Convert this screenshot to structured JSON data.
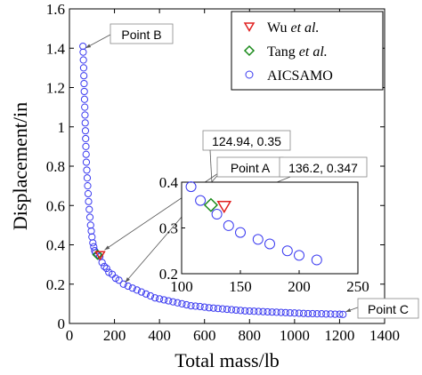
{
  "chart_data": {
    "type": "scatter",
    "xlabel": "Total mass/lb",
    "ylabel": "Displacement/in",
    "xlim": [
      0,
      1400
    ],
    "ylim": [
      0,
      1.6
    ],
    "xticks": [
      "0",
      "200",
      "400",
      "600",
      "800",
      "1000",
      "1200",
      "1400"
    ],
    "yticks": [
      "0",
      "0.2",
      "0.4",
      "0.6",
      "0.8",
      "1",
      "1.2",
      "1.4",
      "1.6"
    ],
    "legend_position": "top-right",
    "legend": [
      {
        "prefix": "Wu ",
        "italic": "et al.",
        "marker": "triangle-down",
        "color": "#e02020"
      },
      {
        "prefix": "Tang ",
        "italic": "et al.",
        "marker": "diamond",
        "color": "#1a8a1a"
      },
      {
        "prefix": "AICSAMO",
        "italic": "",
        "marker": "circle",
        "color": "#3a3af0"
      }
    ],
    "series": [
      {
        "name": "AICSAMO",
        "marker": "circle",
        "color": "#3a3af0",
        "points": [
          [
            60,
            1.41
          ],
          [
            61,
            1.38
          ],
          [
            62,
            1.34
          ],
          [
            63,
            1.3
          ],
          [
            64,
            1.26
          ],
          [
            65,
            1.22
          ],
          [
            66,
            1.18
          ],
          [
            67,
            1.14
          ],
          [
            68,
            1.1
          ],
          [
            69,
            1.06
          ],
          [
            70,
            1.02
          ],
          [
            71,
            0.98
          ],
          [
            72,
            0.94
          ],
          [
            73,
            0.9
          ],
          [
            74,
            0.86
          ],
          [
            75,
            0.82
          ],
          [
            77,
            0.78
          ],
          [
            79,
            0.74
          ],
          [
            81,
            0.7
          ],
          [
            83,
            0.66
          ],
          [
            85,
            0.62
          ],
          [
            88,
            0.58
          ],
          [
            91,
            0.54
          ],
          [
            94,
            0.5
          ],
          [
            97,
            0.47
          ],
          [
            100,
            0.44
          ],
          [
            104,
            0.41
          ],
          [
            108,
            0.39
          ],
          [
            112,
            0.37
          ],
          [
            116,
            0.36
          ],
          [
            125,
            0.35
          ],
          [
            135,
            0.34
          ],
          [
            145,
            0.31
          ],
          [
            155,
            0.29
          ],
          [
            165,
            0.28
          ],
          [
            175,
            0.26
          ],
          [
            190,
            0.25
          ],
          [
            205,
            0.23
          ],
          [
            220,
            0.22
          ],
          [
            240,
            0.2
          ],
          [
            260,
            0.19
          ],
          [
            280,
            0.18
          ],
          [
            300,
            0.17
          ],
          [
            320,
            0.16
          ],
          [
            340,
            0.15
          ],
          [
            360,
            0.14
          ],
          [
            380,
            0.13
          ],
          [
            400,
            0.125
          ],
          [
            420,
            0.12
          ],
          [
            440,
            0.115
          ],
          [
            460,
            0.11
          ],
          [
            480,
            0.105
          ],
          [
            500,
            0.1
          ],
          [
            520,
            0.095
          ],
          [
            540,
            0.09
          ],
          [
            560,
            0.088
          ],
          [
            580,
            0.086
          ],
          [
            600,
            0.083
          ],
          [
            620,
            0.08
          ],
          [
            640,
            0.078
          ],
          [
            660,
            0.076
          ],
          [
            680,
            0.074
          ],
          [
            700,
            0.072
          ],
          [
            720,
            0.07
          ],
          [
            740,
            0.068
          ],
          [
            760,
            0.066
          ],
          [
            780,
            0.064
          ],
          [
            800,
            0.063
          ],
          [
            820,
            0.062
          ],
          [
            840,
            0.061
          ],
          [
            860,
            0.06
          ],
          [
            880,
            0.059
          ],
          [
            900,
            0.058
          ],
          [
            920,
            0.057
          ],
          [
            940,
            0.056
          ],
          [
            960,
            0.055
          ],
          [
            980,
            0.054
          ],
          [
            1000,
            0.053
          ],
          [
            1020,
            0.052
          ],
          [
            1040,
            0.051
          ],
          [
            1060,
            0.05
          ],
          [
            1080,
            0.05
          ],
          [
            1100,
            0.049
          ],
          [
            1120,
            0.049
          ],
          [
            1140,
            0.048
          ],
          [
            1160,
            0.048
          ],
          [
            1180,
            0.047
          ],
          [
            1200,
            0.047
          ],
          [
            1215,
            0.046
          ]
        ]
      },
      {
        "name": "Wu et al.",
        "marker": "triangle-down",
        "color": "#e02020",
        "points": [
          [
            136.2,
            0.347
          ]
        ]
      },
      {
        "name": "Tang et al.",
        "marker": "diamond",
        "color": "#1a8a1a",
        "points": [
          [
            124.94,
            0.35
          ]
        ]
      }
    ],
    "annotations": [
      {
        "text": "Point B",
        "x": 60,
        "y": 1.41
      },
      {
        "text": "Point A",
        "x": 240,
        "y": 0.2
      },
      {
        "text": "Point C",
        "x": 1215,
        "y": 0.046
      },
      {
        "text": "124.94, 0.35",
        "x": 124.94,
        "y": 0.35
      },
      {
        "text": "136.2, 0.347",
        "x": 136.2,
        "y": 0.347
      }
    ],
    "inset": {
      "xlim": [
        100,
        250
      ],
      "ylim": [
        0.2,
        0.4
      ],
      "xticks": [
        "100",
        "150",
        "200",
        "250"
      ],
      "yticks": [
        "0.2",
        "0.3",
        "0.4"
      ],
      "circles": [
        [
          108,
          0.39
        ],
        [
          116,
          0.36
        ],
        [
          130,
          0.33
        ],
        [
          140,
          0.305
        ],
        [
          150,
          0.29
        ],
        [
          165,
          0.275
        ],
        [
          175,
          0.265
        ],
        [
          190,
          0.25
        ],
        [
          200,
          0.24
        ],
        [
          215,
          0.23
        ]
      ],
      "wu": [
        136.2,
        0.347
      ],
      "tang": [
        124.94,
        0.35
      ]
    }
  }
}
